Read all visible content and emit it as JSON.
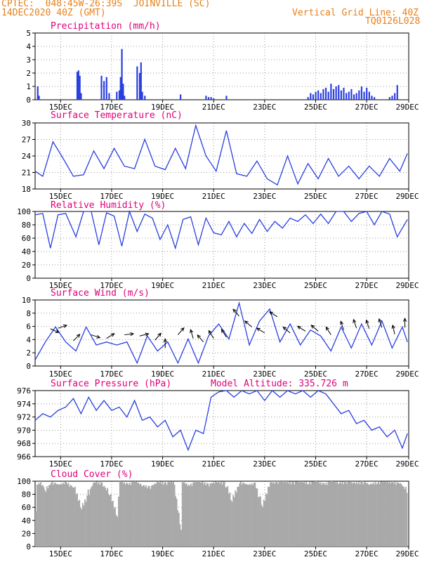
{
  "header": {
    "line1": "CPTEC:  048:45W-26:39S  JOINVILLE (SC)",
    "line2": "14DEC2020 40Z (GMT)",
    "right1": "Vertical Grid Line: 40Z",
    "right2": "TQ0126L028"
  },
  "colors": {
    "header": "#e8801a",
    "title": "#e0007a",
    "line": "#2a3fe0",
    "cloud": "#a9a9a9",
    "grid": "#9a9a9a"
  },
  "x_axis_labels": [
    "15DEC",
    "17DEC",
    "19DEC",
    "21DEC",
    "23DEC",
    "25DEC",
    "27DEC",
    "29DEC"
  ],
  "chart_data": [
    {
      "id": "precip",
      "type": "bar",
      "title": "Precipitation (mm/h)",
      "yticks": [
        "0",
        "1",
        "2",
        "3",
        "4",
        "5"
      ],
      "ylim": [
        0,
        5
      ],
      "grid": true,
      "x_unit": "days since 14DEC2020 00Z",
      "x": [
        0.1,
        0.15,
        1.65,
        1.7,
        1.75,
        1.8,
        2.6,
        2.7,
        2.8,
        2.9,
        3.2,
        3.3,
        3.35,
        3.4,
        3.45,
        3.5,
        4.0,
        4.1,
        4.15,
        4.2,
        4.3,
        5.7,
        6.7,
        6.8,
        6.9,
        7.0,
        7.5,
        10.7,
        10.8,
        10.9,
        11.0,
        11.1,
        11.2,
        11.3,
        11.4,
        11.5,
        11.6,
        11.7,
        11.8,
        11.9,
        12.0,
        12.1,
        12.2,
        12.3,
        12.4,
        12.5,
        12.6,
        12.7,
        12.8,
        12.9,
        13.0,
        13.1,
        13.2,
        13.3,
        13.9,
        14.0,
        14.1,
        14.2
      ],
      "values": [
        1.0,
        0.3,
        2.1,
        2.2,
        1.8,
        0.5,
        1.8,
        1.4,
        1.7,
        0.5,
        0.6,
        0.7,
        1.7,
        3.8,
        1.2,
        0.3,
        2.5,
        2.0,
        2.8,
        0.6,
        0.3,
        0.4,
        0.3,
        0.2,
        0.2,
        0.1,
        0.3,
        0.2,
        0.5,
        0.4,
        0.6,
        0.7,
        0.5,
        0.8,
        0.9,
        0.6,
        1.2,
        0.8,
        1.0,
        1.1,
        0.7,
        0.9,
        0.5,
        0.6,
        0.8,
        0.4,
        0.5,
        0.7,
        1.0,
        0.6,
        0.9,
        0.6,
        0.3,
        0.2,
        0.2,
        0.3,
        0.5,
        1.1
      ]
    },
    {
      "id": "temp",
      "type": "line",
      "title": "Surface Temperature (nC)",
      "yticks": [
        "18",
        "21",
        "24",
        "27",
        "30"
      ],
      "ylim": [
        18,
        31
      ],
      "grid": true,
      "x": [
        0,
        0.3,
        0.7,
        1.1,
        1.5,
        1.9,
        2.3,
        2.7,
        3.1,
        3.5,
        3.9,
        4.3,
        4.7,
        5.1,
        5.5,
        5.9,
        6.3,
        6.7,
        7.1,
        7.5,
        7.9,
        8.3,
        8.7,
        9.1,
        9.5,
        9.9,
        10.3,
        10.7,
        11.1,
        11.5,
        11.9,
        12.3,
        12.7,
        13.1,
        13.5,
        13.9,
        14.3,
        14.6
      ],
      "values": [
        21.5,
        20.5,
        27.3,
        24,
        20.5,
        20.8,
        25.5,
        22,
        26,
        22.5,
        22,
        27.8,
        22.5,
        21.8,
        26,
        22,
        30.5,
        24.5,
        21.5,
        29.5,
        21,
        20.5,
        23.5,
        20,
        18.8,
        24.5,
        19,
        23,
        20,
        24,
        20.5,
        22.5,
        20,
        22.5,
        20.5,
        24,
        21.5,
        25
      ]
    },
    {
      "id": "rh",
      "type": "line",
      "title": "Relative Humidity (%)",
      "yticks": [
        "0",
        "20",
        "40",
        "60",
        "80",
        "100"
      ],
      "ylim": [
        0,
        100
      ],
      "grid": true,
      "x": [
        0,
        0.3,
        0.6,
        0.9,
        1.2,
        1.6,
        1.9,
        2.2,
        2.5,
        2.8,
        3.1,
        3.4,
        3.7,
        4.0,
        4.3,
        4.6,
        4.9,
        5.2,
        5.5,
        5.8,
        6.1,
        6.4,
        6.7,
        7.0,
        7.3,
        7.6,
        7.9,
        8.2,
        8.5,
        8.8,
        9.1,
        9.4,
        9.7,
        10.0,
        10.3,
        10.6,
        10.9,
        11.2,
        11.5,
        11.8,
        12.1,
        12.4,
        12.7,
        13.0,
        13.3,
        13.6,
        13.9,
        14.2,
        14.6
      ],
      "values": [
        95,
        97,
        45,
        95,
        97,
        62,
        100,
        100,
        50,
        98,
        93,
        48,
        100,
        70,
        96,
        90,
        58,
        80,
        45,
        88,
        92,
        50,
        90,
        68,
        65,
        85,
        62,
        82,
        67,
        88,
        70,
        85,
        75,
        90,
        85,
        95,
        82,
        96,
        82,
        100,
        100,
        85,
        97,
        100,
        80,
        100,
        96,
        62,
        88
      ]
    },
    {
      "id": "wind",
      "type": "line",
      "title": "Surface Wind (m/s)",
      "yticks": [
        "0",
        "2",
        "4",
        "6",
        "8",
        "10"
      ],
      "ylim": [
        0,
        11
      ],
      "grid": true,
      "x": [
        0,
        0.4,
        0.8,
        1.2,
        1.6,
        2.0,
        2.4,
        2.8,
        3.2,
        3.6,
        4.0,
        4.4,
        4.8,
        5.2,
        5.6,
        6.0,
        6.4,
        6.8,
        7.2,
        7.6,
        8.0,
        8.4,
        8.8,
        9.2,
        9.6,
        10.0,
        10.4,
        10.8,
        11.2,
        11.6,
        12.0,
        12.4,
        12.8,
        13.2,
        13.6,
        14.0,
        14.4,
        14.6
      ],
      "values": [
        1,
        4,
        6.5,
        4,
        2.5,
        6.5,
        3.5,
        4,
        3.5,
        4,
        0.5,
        5,
        2.5,
        4,
        0.5,
        4.5,
        0.5,
        5,
        7,
        4.5,
        10.5,
        3.5,
        7.5,
        9.5,
        4,
        7,
        3.5,
        6,
        5,
        2.5,
        6.5,
        3,
        7,
        3.5,
        7.5,
        3,
        6.5,
        4
      ],
      "vectors_x": [
        0.6,
        0.9,
        1.5,
        2.2,
        2.8,
        3.5,
        4.1,
        4.7,
        5.1,
        5.6,
        6.2,
        6.6,
        7.0,
        7.5,
        8.0,
        8.5,
        9.0,
        9.5,
        10.0,
        10.6,
        11.1,
        11.6,
        12.1,
        12.6,
        13.1,
        13.6,
        14.1,
        14.5
      ],
      "vectors_dx": [
        0.9,
        0.9,
        0.7,
        0.9,
        0.8,
        0.9,
        0.8,
        0.6,
        0,
        0.6,
        -0.3,
        -0.6,
        -0.5,
        -0.5,
        -0.6,
        -0.7,
        -0.8,
        -0.8,
        -0.7,
        -0.8,
        -0.7,
        -0.5,
        -0.3,
        -0.3,
        -0.3,
        -0.3,
        -0.2,
        0
      ],
      "vectors_dy": [
        0.4,
        -0.3,
        -0.7,
        0.3,
        -0.5,
        -0.1,
        -0.2,
        -0.7,
        -1,
        -0.7,
        -1,
        -0.7,
        -0.8,
        -0.8,
        -0.7,
        -0.6,
        -0.5,
        -0.5,
        -0.6,
        -0.5,
        -0.6,
        -0.8,
        -0.9,
        -0.9,
        -0.9,
        -0.9,
        -0.9,
        -1
      ],
      "vectors_y": [
        6.2,
        6.3,
        4.2,
        5.2,
        4.6,
        5.2,
        5,
        4.3,
        3,
        5.2,
        4.6,
        4,
        4.6,
        4.8,
        8.3,
        6.5,
        5.5,
        8.2,
        5.5,
        5.8,
        5.8,
        5.2,
        6,
        6.3,
        6.2,
        6.4,
        5.3,
        6.4
      ]
    },
    {
      "id": "pres",
      "type": "line",
      "title": "Surface Pressure (hPa)",
      "subtitle": "Model Altitude: 335.726 m",
      "yticks": [
        "966",
        "968",
        "970",
        "972",
        "974",
        "976"
      ],
      "ylim": [
        966,
        976
      ],
      "grid": true,
      "x": [
        0,
        0.3,
        0.6,
        0.9,
        1.2,
        1.5,
        1.8,
        2.1,
        2.4,
        2.7,
        3.0,
        3.3,
        3.6,
        3.9,
        4.2,
        4.5,
        4.8,
        5.1,
        5.4,
        5.7,
        6.0,
        6.3,
        6.6,
        6.9,
        7.2,
        7.5,
        7.8,
        8.1,
        8.4,
        8.7,
        9.0,
        9.3,
        9.6,
        9.9,
        10.2,
        10.5,
        10.8,
        11.1,
        11.4,
        11.7,
        12.0,
        12.3,
        12.6,
        12.9,
        13.2,
        13.5,
        13.8,
        14.1,
        14.4,
        14.6
      ],
      "values": [
        971.5,
        972.5,
        972,
        973,
        973.5,
        974.8,
        972.5,
        975,
        973,
        974.5,
        973,
        973.5,
        972,
        974.5,
        971.5,
        972,
        970.5,
        971.5,
        969,
        970,
        967,
        970,
        969.5,
        975,
        975.8,
        976,
        975,
        976,
        975.5,
        976,
        974.5,
        976,
        975,
        976,
        975.5,
        976,
        975,
        976,
        975.5,
        974,
        972.5,
        973,
        971,
        971.5,
        970,
        970.5,
        969,
        970,
        967.3,
        969.5
      ]
    },
    {
      "id": "cloud",
      "type": "area",
      "title": "Cloud Cover (%)",
      "yticks": [
        "0",
        "20",
        "40",
        "60",
        "80",
        "100"
      ],
      "ylim": [
        0,
        100
      ],
      "grid": true,
      "x": [
        0,
        0.05,
        0.2,
        0.4,
        0.6,
        0.9,
        1.2,
        1.5,
        1.8,
        2.1,
        2.3,
        2.6,
        2.9,
        3.2,
        3.3,
        3.6,
        3.9,
        4.2,
        4.5,
        4.8,
        5.1,
        5.4,
        5.7,
        5.75,
        6.0,
        6.3,
        6.5,
        6.8,
        7.1,
        7.4,
        7.7,
        8.0,
        8.3,
        8.6,
        8.9,
        9.2,
        9.5,
        9.8,
        10.1,
        10.4,
        10.7,
        11.0,
        11.3,
        11.6,
        11.9,
        12.2,
        12.5,
        12.8,
        13.1,
        13.4,
        13.7,
        14.0,
        14.3,
        14.6
      ],
      "values": [
        60,
        95,
        100,
        85,
        100,
        95,
        100,
        90,
        60,
        85,
        100,
        98,
        80,
        50,
        100,
        97,
        100,
        95,
        92,
        100,
        98,
        100,
        30,
        100,
        95,
        100,
        100,
        96,
        100,
        99,
        70,
        100,
        95,
        98,
        60,
        100,
        100,
        100,
        99,
        100,
        99,
        100,
        97,
        100,
        99,
        100,
        98,
        100,
        96,
        100,
        99,
        100,
        97,
        85
      ]
    }
  ]
}
